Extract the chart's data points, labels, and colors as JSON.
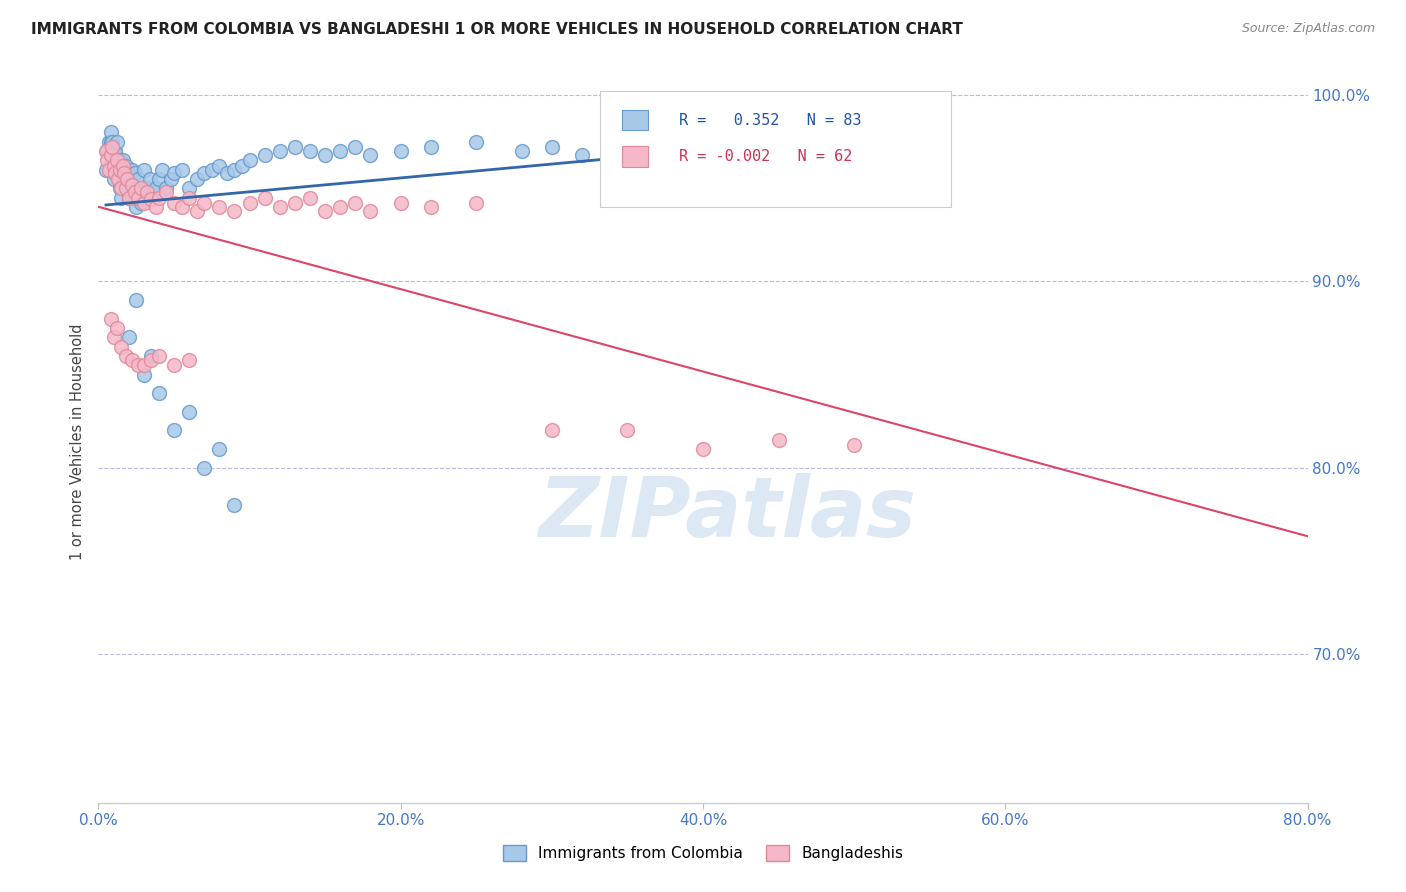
{
  "title": "IMMIGRANTS FROM COLOMBIA VS BANGLADESHI 1 OR MORE VEHICLES IN HOUSEHOLD CORRELATION CHART",
  "source": "Source: ZipAtlas.com",
  "ylabel": "1 or more Vehicles in Household",
  "xlim": [
    0.0,
    0.8
  ],
  "ylim": [
    0.62,
    1.008
  ],
  "R_colombia": 0.352,
  "N_colombia": 83,
  "R_bangladeshi": -0.002,
  "N_bangladeshi": 62,
  "colombia_color": "#a8c8e8",
  "colombia_edge": "#6699cc",
  "bangladeshi_color": "#f5b8c8",
  "bangladeshi_edge": "#e08898",
  "trendline_colombia_color": "#3366aa",
  "trendline_bangladeshi_color": "#dd4466",
  "colombia_points_x": [
    0.005,
    0.006,
    0.007,
    0.008,
    0.008,
    0.009,
    0.009,
    0.01,
    0.01,
    0.011,
    0.011,
    0.012,
    0.012,
    0.013,
    0.013,
    0.014,
    0.014,
    0.015,
    0.015,
    0.016,
    0.016,
    0.017,
    0.017,
    0.018,
    0.018,
    0.019,
    0.02,
    0.02,
    0.021,
    0.022,
    0.022,
    0.023,
    0.024,
    0.025,
    0.026,
    0.027,
    0.028,
    0.03,
    0.032,
    0.034,
    0.036,
    0.038,
    0.04,
    0.042,
    0.045,
    0.048,
    0.05,
    0.055,
    0.06,
    0.065,
    0.07,
    0.075,
    0.08,
    0.085,
    0.09,
    0.095,
    0.1,
    0.11,
    0.12,
    0.13,
    0.14,
    0.15,
    0.16,
    0.17,
    0.18,
    0.2,
    0.22,
    0.25,
    0.28,
    0.3,
    0.32,
    0.35,
    0.38,
    0.02,
    0.025,
    0.03,
    0.035,
    0.04,
    0.05,
    0.06,
    0.07,
    0.08,
    0.09
  ],
  "colombia_points_y": [
    0.96,
    0.97,
    0.975,
    0.975,
    0.98,
    0.965,
    0.975,
    0.955,
    0.97,
    0.96,
    0.97,
    0.96,
    0.975,
    0.96,
    0.965,
    0.95,
    0.965,
    0.945,
    0.96,
    0.955,
    0.965,
    0.955,
    0.96,
    0.95,
    0.962,
    0.958,
    0.945,
    0.958,
    0.95,
    0.945,
    0.96,
    0.952,
    0.958,
    0.94,
    0.955,
    0.948,
    0.942,
    0.96,
    0.95,
    0.955,
    0.948,
    0.95,
    0.955,
    0.96,
    0.95,
    0.955,
    0.958,
    0.96,
    0.95,
    0.955,
    0.958,
    0.96,
    0.962,
    0.958,
    0.96,
    0.962,
    0.965,
    0.968,
    0.97,
    0.972,
    0.97,
    0.968,
    0.97,
    0.972,
    0.968,
    0.97,
    0.972,
    0.975,
    0.97,
    0.972,
    0.968,
    0.97,
    0.972,
    0.87,
    0.89,
    0.85,
    0.86,
    0.84,
    0.82,
    0.83,
    0.8,
    0.81,
    0.78
  ],
  "bangladeshi_points_x": [
    0.005,
    0.006,
    0.007,
    0.008,
    0.009,
    0.01,
    0.011,
    0.012,
    0.013,
    0.014,
    0.015,
    0.016,
    0.017,
    0.018,
    0.019,
    0.02,
    0.022,
    0.024,
    0.026,
    0.028,
    0.03,
    0.032,
    0.035,
    0.038,
    0.04,
    0.045,
    0.05,
    0.055,
    0.06,
    0.065,
    0.07,
    0.08,
    0.09,
    0.1,
    0.11,
    0.12,
    0.13,
    0.14,
    0.15,
    0.16,
    0.17,
    0.18,
    0.2,
    0.22,
    0.25,
    0.008,
    0.01,
    0.012,
    0.015,
    0.018,
    0.022,
    0.026,
    0.03,
    0.035,
    0.04,
    0.05,
    0.06,
    0.3,
    0.35,
    0.4,
    0.45,
    0.5
  ],
  "bangladeshi_points_y": [
    0.97,
    0.965,
    0.96,
    0.968,
    0.972,
    0.962,
    0.958,
    0.965,
    0.955,
    0.96,
    0.95,
    0.962,
    0.958,
    0.95,
    0.955,
    0.945,
    0.952,
    0.948,
    0.945,
    0.95,
    0.942,
    0.948,
    0.944,
    0.94,
    0.945,
    0.948,
    0.942,
    0.94,
    0.945,
    0.938,
    0.942,
    0.94,
    0.938,
    0.942,
    0.945,
    0.94,
    0.942,
    0.945,
    0.938,
    0.94,
    0.942,
    0.938,
    0.942,
    0.94,
    0.942,
    0.88,
    0.87,
    0.875,
    0.865,
    0.86,
    0.858,
    0.855,
    0.855,
    0.858,
    0.86,
    0.855,
    0.858,
    0.82,
    0.82,
    0.81,
    0.815,
    0.812
  ]
}
